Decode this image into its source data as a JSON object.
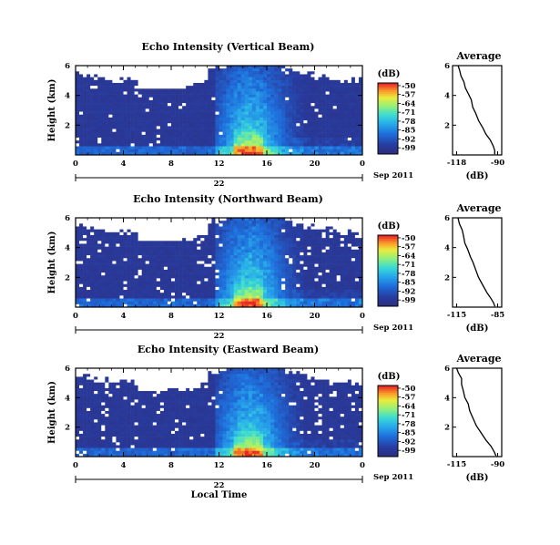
{
  "chart_data": [
    {
      "type": "heatmap",
      "title": "Echo Intensity (Vertical Beam)",
      "ylabel": "Height (km)",
      "xlim": [
        0,
        24
      ],
      "ylim": [
        0,
        6
      ],
      "xticks": [
        "0",
        "4",
        "8",
        "12",
        "16",
        "20",
        "0"
      ],
      "yticks": [
        "6",
        "4",
        "2"
      ],
      "date_tick": "22",
      "date_label": "Sep 2011",
      "colorbar_label": "(dB)",
      "colorbar_ticks": [
        "-50",
        "-57",
        "-64",
        "-71",
        "-78",
        "-85",
        "-92",
        "-99"
      ],
      "profile": {
        "title": "Average",
        "xlabel": "(dB)",
        "xticks": [
          "-118",
          "-90"
        ],
        "yticks": [
          "6",
          "4",
          "2"
        ],
        "x": [
          -92,
          -92,
          -93,
          -95,
          -98,
          -100,
          -103,
          -105,
          -107,
          -108,
          -110,
          -112,
          -113,
          -115,
          -116,
          -117
        ],
        "y": [
          0.05,
          0.3,
          0.6,
          1.0,
          1.4,
          1.8,
          2.3,
          2.8,
          3.2,
          3.7,
          4.1,
          4.5,
          4.9,
          5.3,
          5.7,
          6.0
        ]
      }
    },
    {
      "type": "heatmap",
      "title": "Echo Intensity (Northward Beam)",
      "ylabel": "Height (km)",
      "xlim": [
        0,
        24
      ],
      "ylim": [
        0,
        6
      ],
      "xticks": [
        "0",
        "4",
        "8",
        "12",
        "16",
        "20",
        "0"
      ],
      "yticks": [
        "6",
        "4",
        "2"
      ],
      "date_tick": "22",
      "date_label": "Sep 2011",
      "colorbar_label": "(dB)",
      "colorbar_ticks": [
        "-50",
        "-57",
        "-64",
        "-71",
        "-78",
        "-85",
        "-92",
        "-99"
      ],
      "profile": {
        "title": "Average",
        "xlabel": "(dB)",
        "xticks": [
          "-115",
          "-85"
        ],
        "yticks": [
          "6",
          "4",
          "2"
        ],
        "x": [
          -87,
          -88,
          -90,
          -93,
          -96,
          -99,
          -101,
          -103,
          -105,
          -107,
          -109,
          -110,
          -111,
          -113,
          -114
        ],
        "y": [
          0.05,
          0.3,
          0.6,
          1.0,
          1.5,
          2.0,
          2.5,
          3.0,
          3.4,
          3.9,
          4.3,
          4.8,
          5.2,
          5.6,
          6.0
        ]
      }
    },
    {
      "type": "heatmap",
      "title": "Echo Intensity (Eastward Beam)",
      "ylabel": "Height (km)",
      "xlim": [
        0,
        24
      ],
      "ylim": [
        0,
        6
      ],
      "xticks": [
        "0",
        "4",
        "8",
        "12",
        "16",
        "20",
        "0"
      ],
      "yticks": [
        "6",
        "4",
        "2"
      ],
      "date_tick": "22",
      "date_label": "Sep 2011",
      "xlabel": "Local Time",
      "colorbar_label": "(dB)",
      "colorbar_ticks": [
        "-50",
        "-57",
        "-64",
        "-71",
        "-78",
        "-85",
        "-92",
        "-99"
      ],
      "profile": {
        "title": "Average",
        "xlabel": "(dB)",
        "xticks": [
          "-115",
          "-90"
        ],
        "yticks": [
          "6",
          "4",
          "2"
        ],
        "x": [
          -91,
          -92,
          -94,
          -97,
          -100,
          -103,
          -105,
          -107,
          -108,
          -110,
          -111,
          -112,
          -112,
          -114,
          -115
        ],
        "y": [
          0.05,
          0.3,
          0.7,
          1.1,
          1.6,
          2.1,
          2.6,
          3.1,
          3.6,
          4.0,
          4.5,
          4.9,
          5.3,
          5.7,
          6.0
        ]
      }
    }
  ]
}
